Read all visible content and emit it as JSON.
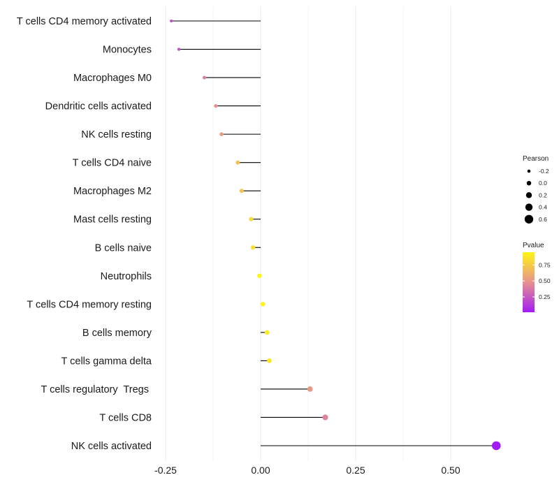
{
  "chart_data": {
    "type": "lollipop",
    "title": "",
    "xlabel": "",
    "ylabel": "",
    "xlim": [
      -0.25,
      0.62
    ],
    "x_ticks": [
      -0.25,
      0.0,
      0.25,
      0.5
    ],
    "x_tick_labels": [
      "-0.25",
      "0.00",
      "0.25",
      "0.50"
    ],
    "grid": true,
    "colors": {
      "low": "#a21cf4",
      "mid": "#e7928e",
      "high": "#fff415",
      "stem": "#000000",
      "grid": "#ebebeb"
    },
    "points": [
      {
        "category": "T cells CD4 memory activated",
        "pearson": -0.235,
        "pvalue": 0.2
      },
      {
        "category": "Monocytes",
        "pearson": -0.215,
        "pvalue": 0.22
      },
      {
        "category": "Macrophages M0",
        "pearson": -0.148,
        "pvalue": 0.4
      },
      {
        "category": "Dendritic cells activated",
        "pearson": -0.118,
        "pvalue": 0.48
      },
      {
        "category": "NK cells resting",
        "pearson": -0.103,
        "pvalue": 0.52
      },
      {
        "category": "T cells CD4 naive",
        "pearson": -0.06,
        "pvalue": 0.7
      },
      {
        "category": "Macrophages M2",
        "pearson": -0.05,
        "pvalue": 0.72
      },
      {
        "category": "Mast cells resting",
        "pearson": -0.025,
        "pvalue": 0.82
      },
      {
        "category": "B cells naive",
        "pearson": -0.02,
        "pvalue": 0.85
      },
      {
        "category": "Neutrophils",
        "pearson": -0.003,
        "pvalue": 0.95
      },
      {
        "category": "T cells CD4 memory resting",
        "pearson": 0.006,
        "pvalue": 0.95
      },
      {
        "category": "B cells memory",
        "pearson": 0.017,
        "pvalue": 0.9
      },
      {
        "category": "T cells gamma delta",
        "pearson": 0.023,
        "pvalue": 0.88
      },
      {
        "category": "T cells regulatory  Tregs ",
        "pearson": 0.13,
        "pvalue": 0.52
      },
      {
        "category": "T cells CD8",
        "pearson": 0.17,
        "pvalue": 0.42
      },
      {
        "category": "NK cells activated",
        "pearson": 0.62,
        "pvalue": 0.01
      }
    ],
    "legend": {
      "placement": "right",
      "size": {
        "title": "Pearson",
        "values": [
          -0.2,
          0.0,
          0.2,
          0.4,
          0.6
        ],
        "labels": [
          "-0.2",
          "0.0",
          "0.2",
          "0.4",
          "0.6"
        ]
      },
      "color": {
        "title": "Pvalue",
        "values": [
          0.25,
          0.5,
          0.75
        ],
        "labels": [
          "0.25",
          "0.50",
          "0.75"
        ],
        "range": [
          0.01,
          0.95
        ]
      }
    }
  }
}
